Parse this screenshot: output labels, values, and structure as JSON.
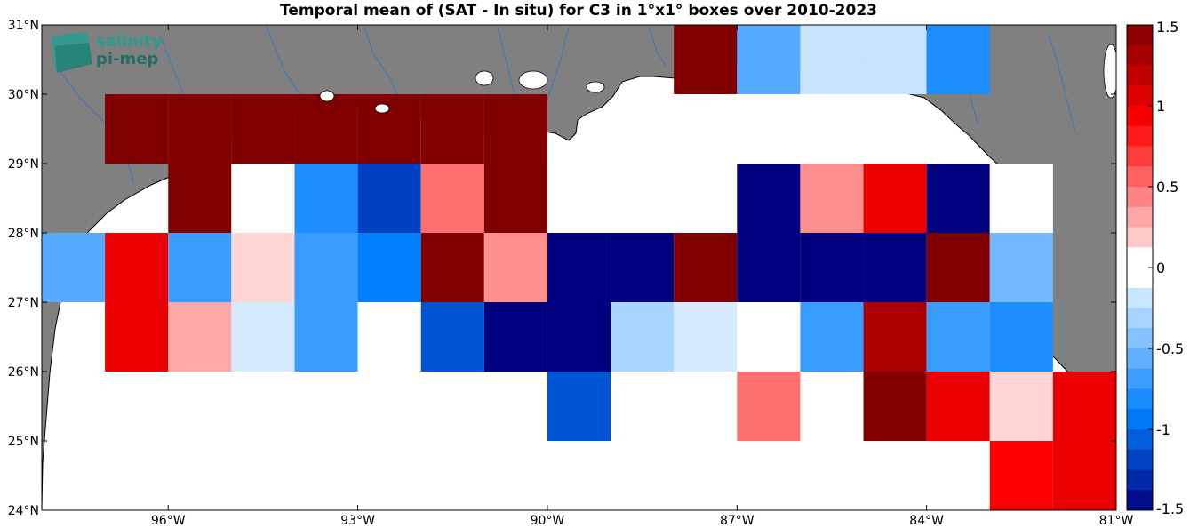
{
  "title": "Temporal mean of (SAT - In situ) for C3 in 1°x1° boxes over 2010-2023",
  "logo": {
    "line1": "salinity",
    "line2": "pi-mep",
    "color": "#2a9d8f"
  },
  "colors": {
    "land": "#808080",
    "ocean": "#ffffff",
    "river": "#3b78c2",
    "coast": "#000000"
  },
  "chart_data": {
    "type": "heatmap",
    "lon_range": [
      -98,
      -81
    ],
    "lat_range": [
      24,
      31
    ],
    "lon_ticks": [
      {
        "value": -96,
        "label": "96°W"
      },
      {
        "value": -93,
        "label": "93°W"
      },
      {
        "value": -90,
        "label": "90°W"
      },
      {
        "value": -87,
        "label": "87°W"
      },
      {
        "value": -84,
        "label": "84°W"
      },
      {
        "value": -81,
        "label": "81°W"
      }
    ],
    "lat_ticks": [
      {
        "value": 24,
        "label": "24°N"
      },
      {
        "value": 25,
        "label": "25°N"
      },
      {
        "value": 26,
        "label": "26°N"
      },
      {
        "value": 27,
        "label": "27°N"
      },
      {
        "value": 28,
        "label": "28°N"
      },
      {
        "value": 29,
        "label": "29°N"
      },
      {
        "value": 30,
        "label": "30°N"
      },
      {
        "value": 31,
        "label": "31°N"
      }
    ],
    "colorbar": {
      "range": [
        -1.5,
        1.5
      ],
      "levels": 24,
      "ticks": [
        {
          "value": 1.5,
          "label": "1.5"
        },
        {
          "value": 1,
          "label": "1"
        },
        {
          "value": 0.5,
          "label": "0.5"
        },
        {
          "value": 0,
          "label": "0"
        },
        {
          "value": -0.5,
          "label": "-0.5"
        },
        {
          "value": -1,
          "label": "-1"
        },
        {
          "value": -1.5,
          "label": "-1.5"
        }
      ]
    },
    "cells": [
      {
        "lon": -96.5,
        "lat": 29.5,
        "value": 1.5
      },
      {
        "lon": -95.5,
        "lat": 29.5,
        "value": 1.5
      },
      {
        "lon": -94.5,
        "lat": 29.5,
        "value": 1.5
      },
      {
        "lon": -93.5,
        "lat": 29.5,
        "value": 1.5
      },
      {
        "lon": -92.5,
        "lat": 29.5,
        "value": 1.5
      },
      {
        "lon": -91.5,
        "lat": 29.5,
        "value": 1.5
      },
      {
        "lon": -90.5,
        "lat": 29.5,
        "value": 1.5
      },
      {
        "lon": -87.5,
        "lat": 30.5,
        "value": 1.5
      },
      {
        "lon": -86.5,
        "lat": 30.5,
        "value": -0.6
      },
      {
        "lon": -85.5,
        "lat": 30.5,
        "value": -0.2
      },
      {
        "lon": -84.5,
        "lat": 30.5,
        "value": -0.2
      },
      {
        "lon": -83.5,
        "lat": 30.5,
        "value": -0.8
      },
      {
        "lon": -95.5,
        "lat": 28.5,
        "value": 1.5
      },
      {
        "lon": -94.5,
        "lat": 28.5,
        "value": 0.0
      },
      {
        "lon": -93.5,
        "lat": 28.5,
        "value": -0.8
      },
      {
        "lon": -92.5,
        "lat": 28.5,
        "value": -1.2
      },
      {
        "lon": -91.5,
        "lat": 28.5,
        "value": 0.5
      },
      {
        "lon": -90.5,
        "lat": 28.5,
        "value": 1.5
      },
      {
        "lon": -89.5,
        "lat": 28.5,
        "value": 0.0
      },
      {
        "lon": -88.5,
        "lat": 28.5,
        "value": 0.0
      },
      {
        "lon": -87.5,
        "lat": 28.5,
        "value": 0.0
      },
      {
        "lon": -86.5,
        "lat": 28.5,
        "value": -1.5
      },
      {
        "lon": -85.5,
        "lat": 28.5,
        "value": 0.4
      },
      {
        "lon": -84.5,
        "lat": 28.5,
        "value": 1.0
      },
      {
        "lon": -83.5,
        "lat": 28.5,
        "value": -1.5
      },
      {
        "lon": -82.5,
        "lat": 28.5,
        "value": 0.0
      },
      {
        "lon": -97.5,
        "lat": 27.5,
        "value": -0.6
      },
      {
        "lon": -96.5,
        "lat": 27.5,
        "value": 1.0
      },
      {
        "lon": -95.5,
        "lat": 27.5,
        "value": -0.7
      },
      {
        "lon": -94.5,
        "lat": 27.5,
        "value": 0.15
      },
      {
        "lon": -93.5,
        "lat": 27.5,
        "value": -0.7
      },
      {
        "lon": -92.5,
        "lat": 27.5,
        "value": -0.9
      },
      {
        "lon": -91.5,
        "lat": 27.5,
        "value": 1.5
      },
      {
        "lon": -90.5,
        "lat": 27.5,
        "value": 0.4
      },
      {
        "lon": -89.5,
        "lat": 27.5,
        "value": -1.5
      },
      {
        "lon": -88.5,
        "lat": 27.5,
        "value": -1.5
      },
      {
        "lon": -87.5,
        "lat": 27.5,
        "value": 1.5
      },
      {
        "lon": -86.5,
        "lat": 27.5,
        "value": -1.5
      },
      {
        "lon": -85.5,
        "lat": 27.5,
        "value": -1.5
      },
      {
        "lon": -84.5,
        "lat": 27.5,
        "value": -1.5
      },
      {
        "lon": -83.5,
        "lat": 27.5,
        "value": 1.5
      },
      {
        "lon": -82.5,
        "lat": 27.5,
        "value": -0.5
      },
      {
        "lon": -96.5,
        "lat": 26.5,
        "value": 1.0
      },
      {
        "lon": -95.5,
        "lat": 26.5,
        "value": 0.3
      },
      {
        "lon": -94.5,
        "lat": 26.5,
        "value": -0.15
      },
      {
        "lon": -93.5,
        "lat": 26.5,
        "value": -0.7
      },
      {
        "lon": -92.5,
        "lat": 26.5,
        "value": 0.0
      },
      {
        "lon": -91.5,
        "lat": 26.5,
        "value": -1.1
      },
      {
        "lon": -90.5,
        "lat": 26.5,
        "value": -1.5
      },
      {
        "lon": -89.5,
        "lat": 26.5,
        "value": -1.5
      },
      {
        "lon": -88.5,
        "lat": 26.5,
        "value": -0.3
      },
      {
        "lon": -87.5,
        "lat": 26.5,
        "value": -0.15
      },
      {
        "lon": -86.5,
        "lat": 26.5,
        "value": 0.0
      },
      {
        "lon": -85.5,
        "lat": 26.5,
        "value": -0.7
      },
      {
        "lon": -84.5,
        "lat": 26.5,
        "value": 1.3
      },
      {
        "lon": -83.5,
        "lat": 26.5,
        "value": -0.7
      },
      {
        "lon": -82.5,
        "lat": 26.5,
        "value": -0.8
      },
      {
        "lon": -89.5,
        "lat": 25.5,
        "value": -1.1
      },
      {
        "lon": -86.5,
        "lat": 25.5,
        "value": 0.5
      },
      {
        "lon": -84.5,
        "lat": 25.5,
        "value": 1.5
      },
      {
        "lon": -83.5,
        "lat": 25.5,
        "value": 1.0
      },
      {
        "lon": -82.5,
        "lat": 25.5,
        "value": 0.15
      },
      {
        "lon": -81.5,
        "lat": 25.5,
        "value": 1.0
      },
      {
        "lon": -82.5,
        "lat": 24.5,
        "value": 0.9
      },
      {
        "lon": -81.5,
        "lat": 24.5,
        "value": 1.0
      }
    ]
  }
}
